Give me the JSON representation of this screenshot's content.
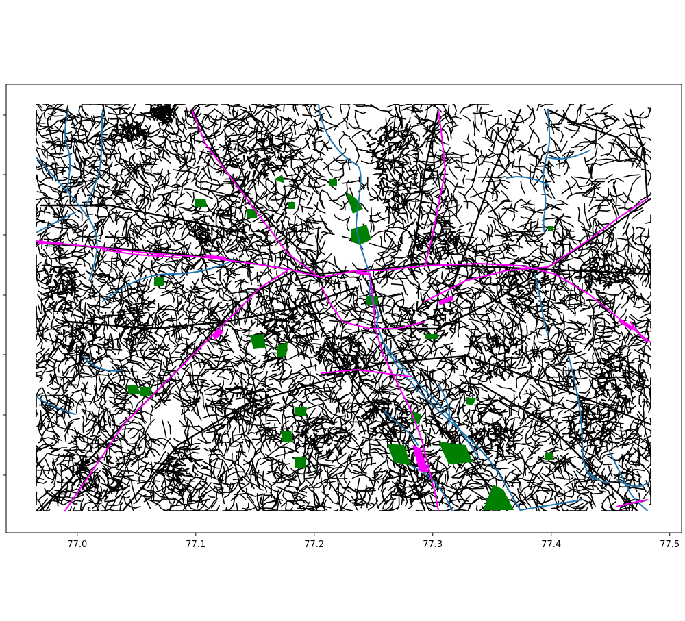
{
  "chart_data": {
    "type": "map",
    "layers": [
      "roads",
      "rail",
      "waterways",
      "parks"
    ],
    "colors": {
      "roads": "#000000",
      "rail": "#ff00ff",
      "waterways": "#1f77b4",
      "parks": "#008000"
    },
    "x_axis": {
      "ticks": [
        77.0,
        77.1,
        77.2,
        77.3,
        77.4,
        77.5
      ],
      "tick_labels": [
        "77.0",
        "77.1",
        "77.2",
        "77.3",
        "77.4",
        "77.5"
      ],
      "xlim": [
        76.94,
        77.51
      ]
    },
    "y_axis": {
      "tick_count": 7,
      "tick_labels_visible": false
    },
    "grid": false,
    "legend": "none"
  }
}
